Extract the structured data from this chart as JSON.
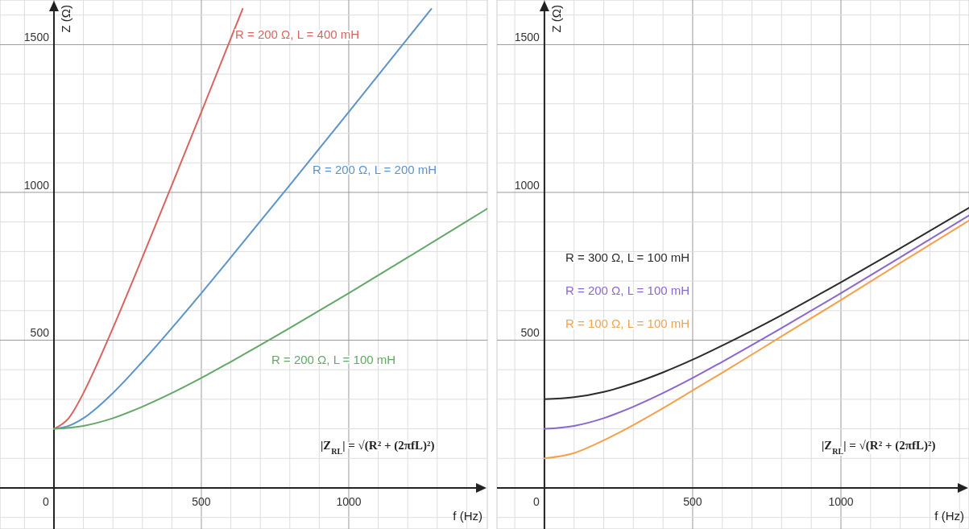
{
  "chart_data": [
    {
      "type": "line",
      "xlabel": "f (Hz)",
      "ylabel": "Z (Ω)",
      "xlim": [
        -183,
        1470
      ],
      "ylim": [
        -139,
        1651
      ],
      "xticks": [
        {
          "value": -100,
          "label": null
        },
        0,
        {
          "value": 100,
          "label": null
        },
        {
          "value": 200,
          "label": null
        },
        {
          "value": 300,
          "label": null
        },
        {
          "value": 400,
          "label": null
        },
        500,
        {
          "value": 600,
          "label": null
        },
        {
          "value": 700,
          "label": null
        },
        {
          "value": 800,
          "label": null
        },
        {
          "value": 900,
          "label": null
        },
        1000,
        {
          "value": 1100,
          "label": null
        },
        {
          "value": 1200,
          "label": null
        },
        {
          "value": 1300,
          "label": null
        },
        {
          "value": 1400,
          "label": null
        }
      ],
      "yticks": [
        {
          "value": -100,
          "label": null
        },
        {
          "value": 100,
          "label": null
        },
        {
          "value": 200,
          "label": null
        },
        {
          "value": 300,
          "label": null
        },
        {
          "value": 400,
          "label": null
        },
        500,
        {
          "value": 600,
          "label": null
        },
        {
          "value": 700,
          "label": null
        },
        {
          "value": 800,
          "label": null
        },
        {
          "value": 900,
          "label": null
        },
        1000,
        {
          "value": 1100,
          "label": null
        },
        {
          "value": 1200,
          "label": null
        },
        {
          "value": 1300,
          "label": null
        },
        {
          "value": 1400,
          "label": null
        },
        1500,
        {
          "value": 1600,
          "label": null
        }
      ],
      "grid": true,
      "marker": "none",
      "line_style": "solid",
      "annotations": [
        "|Z$_{RL}$| = √(R² + (2πfL)²)"
      ],
      "series": [
        {
          "name": "R = 200 Ω, L = 400 mH",
          "color": "#d9645f",
          "x": [
            0,
            50,
            100,
            150,
            200,
            300,
            400,
            500,
            600,
            640
          ],
          "values": [
            200,
            236,
            321,
            427,
            541,
            780,
            1025,
            1272,
            1521,
            1621
          ]
        },
        {
          "name": "R = 200 Ω, L = 200 mH",
          "color": "#5b93cc",
          "x": [
            0,
            50,
            100,
            200,
            300,
            400,
            500,
            600,
            800,
            1000,
            1200,
            1280
          ],
          "values": [
            200,
            210,
            236,
            321,
            427,
            541,
            659,
            780,
            1025,
            1272,
            1521,
            1621
          ]
        },
        {
          "name": "R = 200 Ω, L = 100 mH",
          "color": "#64a867",
          "x": [
            0,
            100,
            200,
            300,
            400,
            500,
            600,
            800,
            1000,
            1200,
            1400,
            1470
          ],
          "values": [
            200,
            210,
            236,
            275,
            321,
            372,
            427,
            541,
            659,
            780,
            902,
            945
          ]
        }
      ]
    },
    {
      "type": "line",
      "xlabel": "f (Hz)",
      "ylabel": "Z (Ω)",
      "xlim": [
        -160,
        1432
      ],
      "ylim": [
        -139,
        1651
      ],
      "xticks": [
        {
          "value": -100,
          "label": null
        },
        0,
        {
          "value": 100,
          "label": null
        },
        {
          "value": 200,
          "label": null
        },
        {
          "value": 300,
          "label": null
        },
        {
          "value": 400,
          "label": null
        },
        500,
        {
          "value": 600,
          "label": null
        },
        {
          "value": 700,
          "label": null
        },
        {
          "value": 800,
          "label": null
        },
        {
          "value": 900,
          "label": null
        },
        1000,
        {
          "value": 1100,
          "label": null
        },
        {
          "value": 1200,
          "label": null
        },
        {
          "value": 1300,
          "label": null
        },
        {
          "value": 1400,
          "label": null
        }
      ],
      "yticks": [
        {
          "value": -100,
          "label": null
        },
        {
          "value": 100,
          "label": null
        },
        {
          "value": 200,
          "label": null
        },
        {
          "value": 300,
          "label": null
        },
        {
          "value": 400,
          "label": null
        },
        500,
        {
          "value": 600,
          "label": null
        },
        {
          "value": 700,
          "label": null
        },
        {
          "value": 800,
          "label": null
        },
        {
          "value": 900,
          "label": null
        },
        1000,
        {
          "value": 1100,
          "label": null
        },
        {
          "value": 1200,
          "label": null
        },
        {
          "value": 1300,
          "label": null
        },
        {
          "value": 1400,
          "label": null
        },
        1500,
        {
          "value": 1600,
          "label": null
        }
      ],
      "grid": true,
      "marker": "none",
      "line_style": "solid",
      "annotations": [
        "|Z$_{RL}$| = √(R² + (2πfL)²)"
      ],
      "series": [
        {
          "name": "R = 300 Ω, L = 100 mH",
          "color": "#2b2b2b",
          "x": [
            0,
            100,
            200,
            300,
            400,
            500,
            600,
            800,
            1000,
            1200,
            1432
          ],
          "values": [
            300,
            307,
            325,
            354,
            391,
            434,
            482,
            585,
            696,
            811,
            948
          ]
        },
        {
          "name": "R = 200 Ω, L = 100 mH",
          "color": "#8a66d0",
          "x": [
            0,
            100,
            200,
            300,
            400,
            500,
            600,
            800,
            1000,
            1200,
            1432
          ],
          "values": [
            200,
            210,
            236,
            275,
            321,
            372,
            427,
            541,
            659,
            780,
            922
          ]
        },
        {
          "name": "R = 100 Ω, L = 100 mH",
          "color": "#f5a04a",
          "x": [
            0,
            100,
            200,
            300,
            400,
            500,
            600,
            800,
            1000,
            1200,
            1432
          ],
          "values": [
            100,
            118,
            161,
            213,
            270,
            330,
            390,
            513,
            636,
            761,
            905
          ]
        }
      ]
    }
  ]
}
